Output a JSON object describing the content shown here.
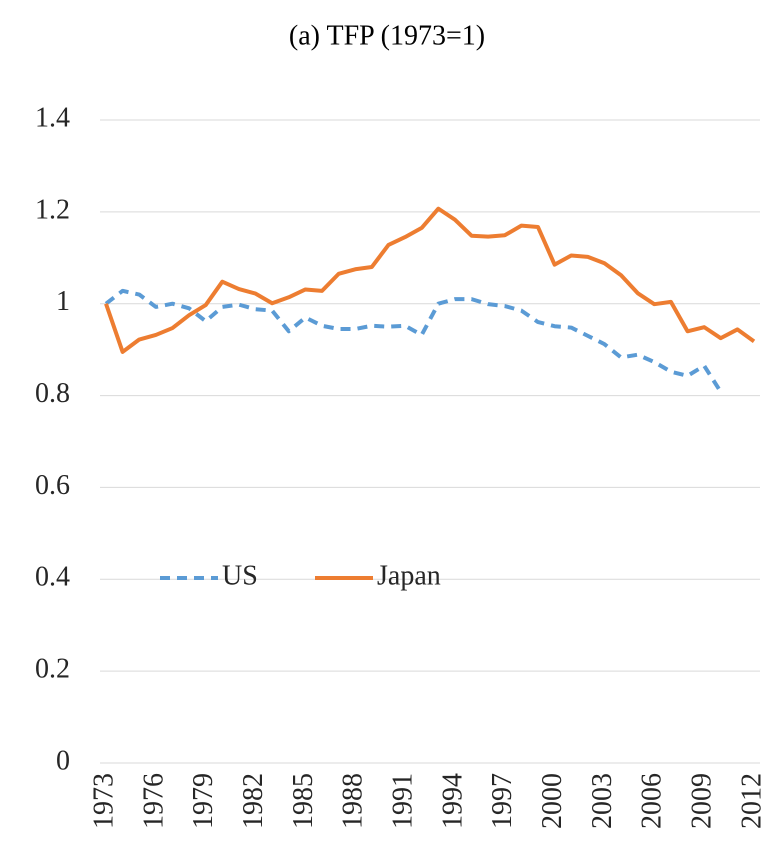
{
  "chart_data": {
    "type": "line",
    "title": "(a) TFP (1973=1)",
    "x": [
      1973,
      1974,
      1975,
      1976,
      1977,
      1978,
      1979,
      1980,
      1981,
      1982,
      1983,
      1984,
      1985,
      1986,
      1987,
      1988,
      1989,
      1990,
      1991,
      1992,
      1993,
      1994,
      1995,
      1996,
      1997,
      1998,
      1999,
      2000,
      2001,
      2002,
      2003,
      2004,
      2005,
      2006,
      2007,
      2008,
      2009,
      2010,
      2011,
      2012
    ],
    "series": [
      {
        "name": "US",
        "color": "#5b9bd5",
        "line_style": "dashed",
        "values": [
          1.0,
          1.028,
          1.02,
          0.993,
          1.0,
          0.99,
          0.962,
          0.993,
          0.998,
          0.988,
          0.985,
          0.94,
          0.97,
          0.952,
          0.945,
          0.945,
          0.952,
          0.95,
          0.952,
          0.932,
          1.0,
          1.01,
          1.01,
          0.999,
          0.995,
          0.985,
          0.96,
          0.951,
          0.948,
          0.93,
          0.912,
          0.883,
          0.889,
          0.873,
          0.852,
          0.843,
          0.865,
          0.808,
          null,
          null
        ]
      },
      {
        "name": "Japan",
        "color": "#ed7d31",
        "line_style": "solid",
        "values": [
          1.0,
          0.895,
          0.922,
          0.932,
          0.947,
          0.975,
          0.997,
          1.048,
          1.032,
          1.022,
          1.001,
          1.014,
          1.031,
          1.028,
          1.065,
          1.075,
          1.08,
          1.128,
          1.145,
          1.165,
          1.207,
          1.183,
          1.148,
          1.146,
          1.149,
          1.17,
          1.167,
          1.085,
          1.105,
          1.102,
          1.088,
          1.062,
          1.023,
          0.999,
          1.004,
          0.94,
          0.949,
          0.925,
          0.944,
          0.918
        ]
      }
    ],
    "xlim": [
      1973,
      2012
    ],
    "xticks": [
      1973,
      1976,
      1979,
      1982,
      1985,
      1988,
      1991,
      1994,
      1997,
      2000,
      2003,
      2006,
      2009,
      2012
    ],
    "ylim": [
      0,
      1.4
    ],
    "yticks": [
      0,
      0.2,
      0.4,
      0.6,
      0.8,
      1,
      1.2,
      1.4
    ],
    "grid": true
  }
}
